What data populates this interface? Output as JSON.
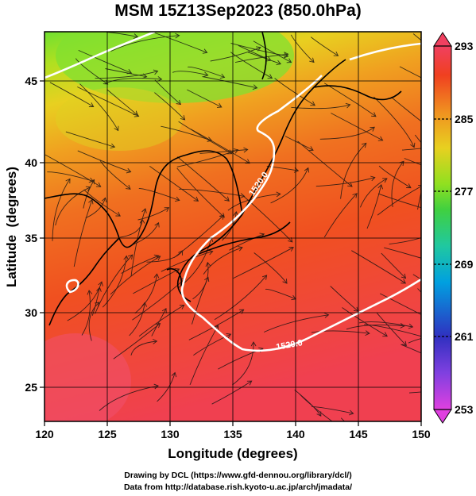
{
  "title": "MSM 15Z13Sep2023 (850.0hPa)",
  "xaxis": {
    "label": "Longitude (degrees)",
    "range": [
      120,
      150
    ],
    "ticks": [
      "120",
      "125",
      "130",
      "135",
      "140",
      "145",
      "150"
    ]
  },
  "yaxis": {
    "label": "Latitude  (degrees)",
    "range": [
      22.5,
      47.5
    ],
    "ticks": [
      "25",
      "30",
      "35",
      "40",
      "45"
    ]
  },
  "colorbar": {
    "range": [
      253,
      293
    ],
    "ticks": [
      "293",
      "285",
      "277",
      "269",
      "261",
      "253"
    ],
    "colors": [
      "#e040e0",
      "#3030c0",
      "#00a0e0",
      "#20c8a0",
      "#60e020",
      "#c0e020",
      "#f0c020",
      "#f08020",
      "#f04020",
      "#f04060"
    ]
  },
  "contours": [
    {
      "label": "1520.0",
      "color": "#ffffff"
    },
    {
      "label": "1520.0",
      "color": "#ffffff"
    }
  ],
  "credits": {
    "line1": "Drawing by DCL (https://www.gfd-dennou.org/library/dcl/)",
    "line2": "Data from http://database.rish.kyoto-u.ac.jp/arch/jmadata/"
  }
}
